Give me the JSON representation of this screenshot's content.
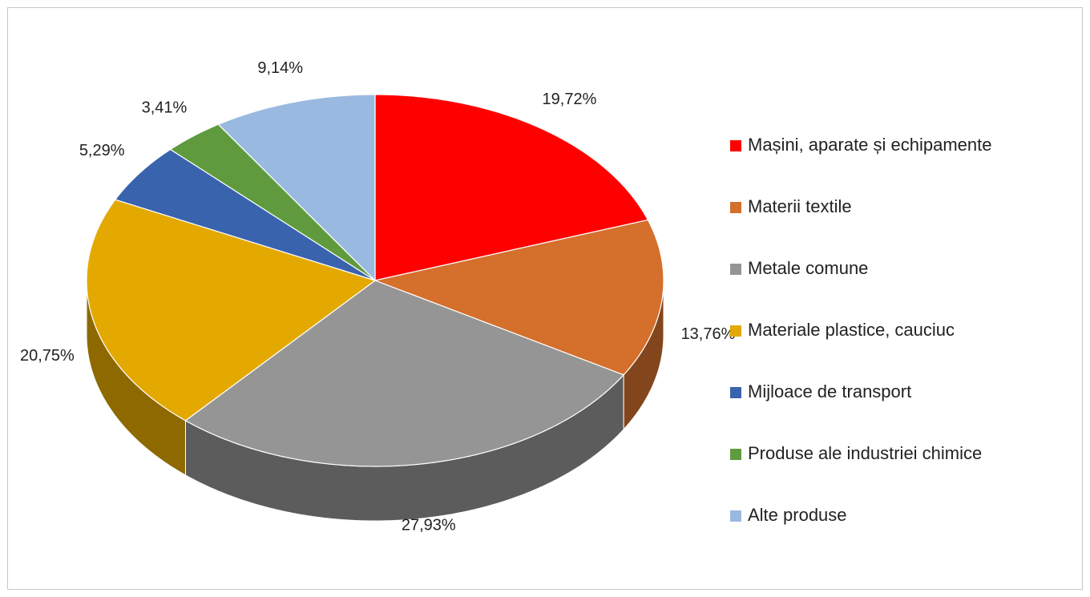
{
  "chart_data": {
    "type": "pie",
    "categories": [
      "Mașini, aparate și echipamente",
      "Materii textile",
      "Metale comune",
      "Materiale plastice, cauciuc",
      "Mijloace de transport",
      "Produse ale industriei chimice",
      "Alte produse"
    ],
    "values": [
      19.72,
      13.76,
      27.93,
      20.75,
      5.29,
      3.41,
      9.14
    ],
    "value_labels": [
      "19,72%",
      "13,76%",
      "27,93%",
      "20,75%",
      "5,29%",
      "3,41%",
      "9,14%"
    ],
    "colors": [
      "#ff0000",
      "#d46f2c",
      "#959595",
      "#e3a900",
      "#3a63ae",
      "#5f9b3e",
      "#99b9e1"
    ],
    "legend": "right"
  }
}
